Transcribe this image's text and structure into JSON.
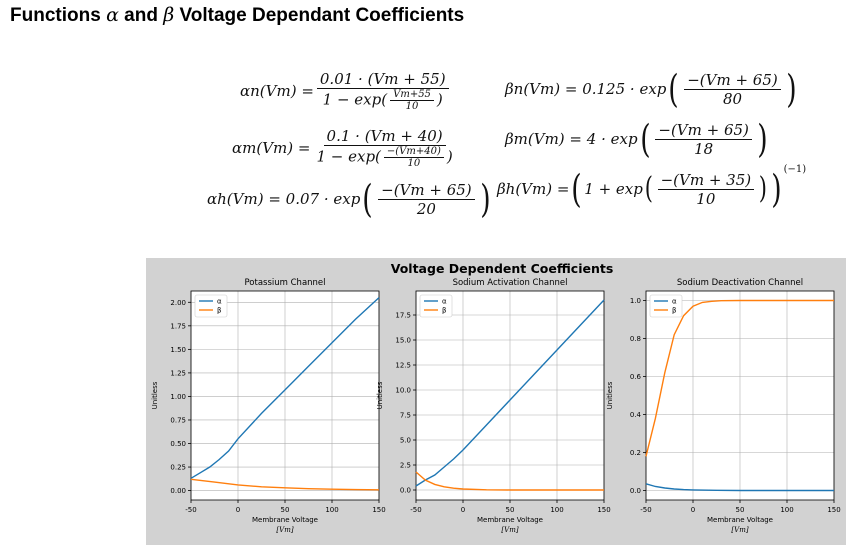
{
  "page": {
    "title_prefix": "Functions ",
    "alpha": "α",
    "and": " and ",
    "beta": "β",
    "title_suffix": " Voltage Dependant Coefficients"
  },
  "equations": {
    "alpha_n": {
      "lhs": "αn(Vm) =",
      "num": "0.01 · (Vm + 55)",
      "den_prefix": "1 − exp(",
      "den_frac_num": "Vm+55",
      "den_frac_den": "10",
      "den_suffix": ")"
    },
    "alpha_m": {
      "lhs": "αm(Vm) =",
      "num": "0.1 · (Vm + 40)",
      "den_prefix": "1 − exp(",
      "den_frac_num": "−(Vm+40)",
      "den_frac_den": "10",
      "den_suffix": ")"
    },
    "alpha_h": {
      "lhs": "αh(Vm) = 0.07 · exp",
      "num": "−(Vm + 65)",
      "den": "20"
    },
    "beta_n": {
      "lhs": "βn(Vm) = 0.125 · exp",
      "num": "−(Vm + 65)",
      "den": "80"
    },
    "beta_m": {
      "lhs": "βm(Vm) = 4 · exp",
      "num": "−(Vm + 65)",
      "den": "18"
    },
    "beta_h": {
      "lhs": "βh(Vm) =",
      "inner": "1 + exp",
      "num": "−(Vm + 35)",
      "den": "10",
      "exponent": "(−1)"
    }
  },
  "chart_data": {
    "suptitle": "Voltage Dependent Coefficients",
    "colors": {
      "alpha": "#1f77b4",
      "beta": "#ff7f0e"
    },
    "panels": [
      {
        "type": "line",
        "title": "Potassium Channel",
        "xlabel": "Membrane Voltage",
        "xlabel_unit": "[Vm]",
        "ylabel": "Unitless",
        "xlim": [
          -50,
          150
        ],
        "ylim": [
          -0.1,
          2.12
        ],
        "xticks": [
          -50,
          0,
          50,
          100,
          150
        ],
        "yticks": [
          0.0,
          0.25,
          0.5,
          0.75,
          1.0,
          1.25,
          1.5,
          1.75,
          2.0
        ],
        "ytick_labels": [
          "0.00",
          "0.25",
          "0.50",
          "0.75",
          "1.00",
          "1.25",
          "1.50",
          "1.75",
          "2.00"
        ],
        "grid": true,
        "legend": "top-left",
        "series": [
          {
            "name": "α",
            "x": [
              -50,
              -40,
              -30,
              -20,
              -10,
              0,
              25,
              50,
              75,
              100,
              125,
              150
            ],
            "values": [
              0.13,
              0.19,
              0.25,
              0.33,
              0.42,
              0.55,
              0.82,
              1.07,
              1.32,
              1.57,
              1.82,
              2.05
            ]
          },
          {
            "name": "β",
            "x": [
              -50,
              -25,
              0,
              25,
              50,
              75,
              100,
              125,
              150
            ],
            "values": [
              0.12,
              0.09,
              0.06,
              0.04,
              0.03,
              0.02,
              0.015,
              0.01,
              0.008
            ]
          }
        ]
      },
      {
        "type": "line",
        "title": "Sodium Activation Channel",
        "xlabel": "Membrane Voltage",
        "xlabel_unit": "[Vm]",
        "ylabel": "Unitless",
        "xlim": [
          -50,
          150
        ],
        "ylim": [
          -1.0,
          19.9
        ],
        "xticks": [
          -50,
          0,
          50,
          100,
          150
        ],
        "yticks": [
          0.0,
          2.5,
          5.0,
          7.5,
          10.0,
          12.5,
          15.0,
          17.5
        ],
        "ytick_labels": [
          "0.0",
          "2.5",
          "5.0",
          "7.5",
          "10.0",
          "12.5",
          "15.0",
          "17.5"
        ],
        "grid": true,
        "legend": "top-left",
        "series": [
          {
            "name": "α",
            "x": [
              -50,
              -40,
              -30,
              -20,
              -10,
              0,
              25,
              50,
              75,
              100,
              125,
              150
            ],
            "values": [
              0.4,
              1.0,
              1.5,
              2.3,
              3.1,
              4.0,
              6.5,
              9.0,
              11.5,
              14.0,
              16.5,
              19.0
            ]
          },
          {
            "name": "β",
            "x": [
              -50,
              -40,
              -30,
              -20,
              -10,
              0,
              25,
              50,
              75,
              100,
              125,
              150
            ],
            "values": [
              1.8,
              0.98,
              0.56,
              0.32,
              0.18,
              0.1,
              0.02,
              0.0,
              0.0,
              0.0,
              0.0,
              0.0
            ]
          }
        ]
      },
      {
        "type": "line",
        "title": "Sodium Deactivation Channel",
        "xlabel": "Membrane Voltage",
        "xlabel_unit": "[Vm]",
        "ylabel": "Unitless",
        "xlim": [
          -50,
          150
        ],
        "ylim": [
          -0.05,
          1.05
        ],
        "xticks": [
          -50,
          0,
          50,
          100,
          150
        ],
        "yticks": [
          0.0,
          0.2,
          0.4,
          0.6,
          0.8,
          1.0
        ],
        "ytick_labels": [
          "0.0",
          "0.2",
          "0.4",
          "0.6",
          "0.8",
          "1.0"
        ],
        "grid": true,
        "legend": "top-left",
        "series": [
          {
            "name": "α",
            "x": [
              -50,
              -40,
              -30,
              -20,
              -10,
              0,
              25,
              50,
              75,
              100,
              125,
              150
            ],
            "values": [
              0.035,
              0.021,
              0.013,
              0.008,
              0.005,
              0.003,
              0.001,
              0.0,
              0.0,
              0.0,
              0.0,
              0.0
            ]
          },
          {
            "name": "β",
            "x": [
              -50,
              -40,
              -30,
              -20,
              -10,
              0,
              10,
              20,
              30,
              50,
              75,
              100,
              125,
              150
            ],
            "values": [
              0.18,
              0.38,
              0.62,
              0.82,
              0.92,
              0.97,
              0.99,
              0.996,
              0.999,
              1.0,
              1.0,
              1.0,
              1.0,
              1.0
            ]
          }
        ]
      }
    ]
  }
}
